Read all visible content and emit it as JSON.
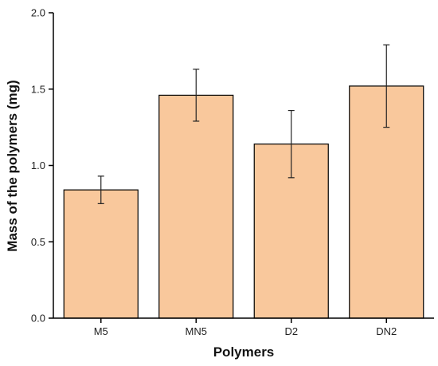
{
  "chart_data": {
    "type": "bar",
    "categories": [
      "M5",
      "MN5",
      "D2",
      "DN2"
    ],
    "values": [
      0.84,
      1.46,
      1.14,
      1.52
    ],
    "error_low": [
      0.75,
      1.29,
      0.92,
      1.25
    ],
    "error_high": [
      0.93,
      1.63,
      1.36,
      1.79
    ],
    "xlabel": "Polymers",
    "ylabel": "Mass of the polymers (mg)",
    "ylim": [
      0.0,
      2.0
    ],
    "yticks": [
      "0.0",
      "0.5",
      "1.0",
      "1.5",
      "2.0"
    ],
    "bar_color": "#F9C89C",
    "grid": false,
    "legend": "none"
  }
}
